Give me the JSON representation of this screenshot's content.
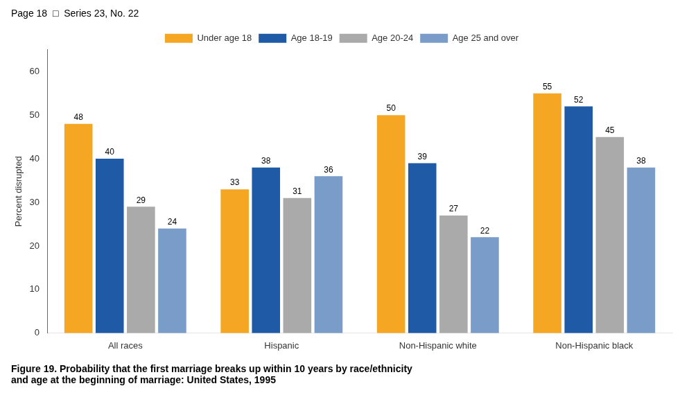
{
  "chart_data": {
    "type": "bar",
    "subtitle": "Page 18  □  Series 23, No. 22",
    "title": "Figure 19. Probability that the first marriage breaks up within 10 years by race/ethnicity\nand age at the beginning of marriage: United States, 1995",
    "ylabel": "Percent disrupted",
    "categories": [
      "All races",
      "Hispanic",
      "Non-Hispanic white",
      "Non-Hispanic black"
    ],
    "series": [
      {
        "name": "Under age 18",
        "color": "#F5A623",
        "values": [
          48,
          33,
          50,
          55
        ]
      },
      {
        "name": "Age 18-19",
        "color": "#1F5AA6",
        "values": [
          40,
          38,
          39,
          52
        ]
      },
      {
        "name": "Age 20-24",
        "color": "#AAAAAA",
        "values": [
          29,
          31,
          27,
          45
        ]
      },
      {
        "name": "Age 25 and over",
        "color": "#7A9CC9",
        "values": [
          24,
          36,
          22,
          38
        ]
      }
    ],
    "ylim": [
      0,
      65
    ],
    "yticks": [
      0,
      10,
      20,
      30,
      40,
      50,
      60
    ],
    "grid": false,
    "legend": "top",
    "data_labels": true
  }
}
